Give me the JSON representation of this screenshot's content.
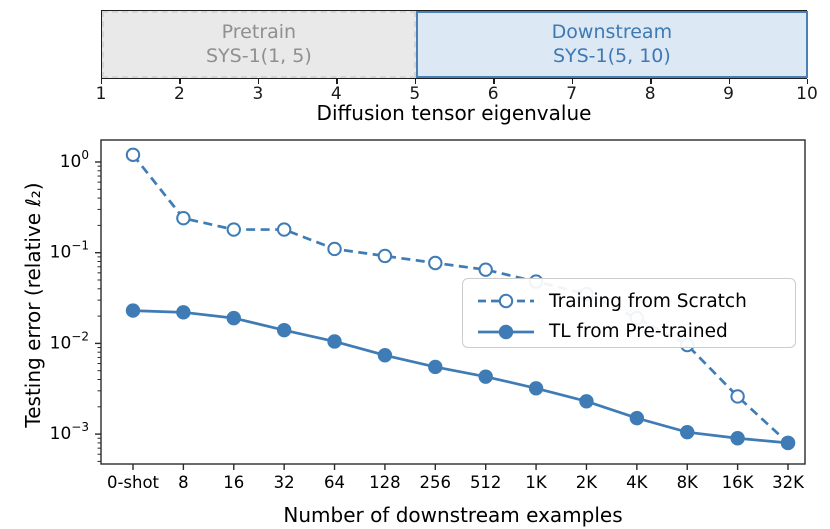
{
  "accent_color": "#3f7cb5",
  "chart_data": [
    {
      "type": "span-diagram",
      "axis_label": "Diffusion tensor eigenvalue",
      "xlim": [
        1,
        10
      ],
      "axis_ticks": [
        "1",
        "2",
        "3",
        "4",
        "5",
        "6",
        "7",
        "8",
        "9",
        "10"
      ],
      "regions": [
        {
          "name": "pretrain",
          "lines": [
            "Pretrain",
            "SYS-1(1, 5)"
          ],
          "start": 1,
          "end": 5,
          "fill": "#e9e9e9",
          "border": "#d5d5d5",
          "border_style": "dashed",
          "text_color": "#8f8f8f"
        },
        {
          "name": "downstream",
          "lines": [
            "Downstream",
            "SYS-1(5, 10)"
          ],
          "start": 5,
          "end": 10,
          "fill": "#dce8f4",
          "border": "#4a80b5",
          "border_style": "solid",
          "text_color": "#3e79b4"
        }
      ]
    },
    {
      "type": "line",
      "xlabel": "Number of downstream examples",
      "ylabel": "Testing error (relative ℓ₂)",
      "yscale": "log",
      "ylim": [
        0.00047,
        1.75
      ],
      "categories": [
        "0-shot",
        "8",
        "16",
        "32",
        "64",
        "128",
        "256",
        "512",
        "1K",
        "2K",
        "4K",
        "8K",
        "16K",
        "32K"
      ],
      "y_major_ticks": [
        {
          "value": 1,
          "exp": "0"
        },
        {
          "value": 0.1,
          "exp": "−1"
        },
        {
          "value": 0.01,
          "exp": "−2"
        },
        {
          "value": 0.001,
          "exp": "−3"
        }
      ],
      "legend_position": "top-right",
      "grid": false,
      "series": [
        {
          "name": "Training from Scratch",
          "style": "dashed",
          "marker": "open",
          "color": "#3f7cb5",
          "values": [
            1.2,
            0.24,
            0.18,
            0.18,
            0.11,
            0.092,
            0.077,
            0.065,
            0.048,
            0.035,
            0.019,
            0.0096,
            0.0026,
            0.0008
          ]
        },
        {
          "name": "TL from Pre-trained",
          "style": "solid",
          "marker": "filled",
          "color": "#3f7cb5",
          "values": [
            0.023,
            0.022,
            0.019,
            0.014,
            0.0105,
            0.0074,
            0.0055,
            0.0043,
            0.0032,
            0.0023,
            0.0015,
            0.00105,
            0.0009,
            0.0008
          ]
        }
      ]
    }
  ]
}
